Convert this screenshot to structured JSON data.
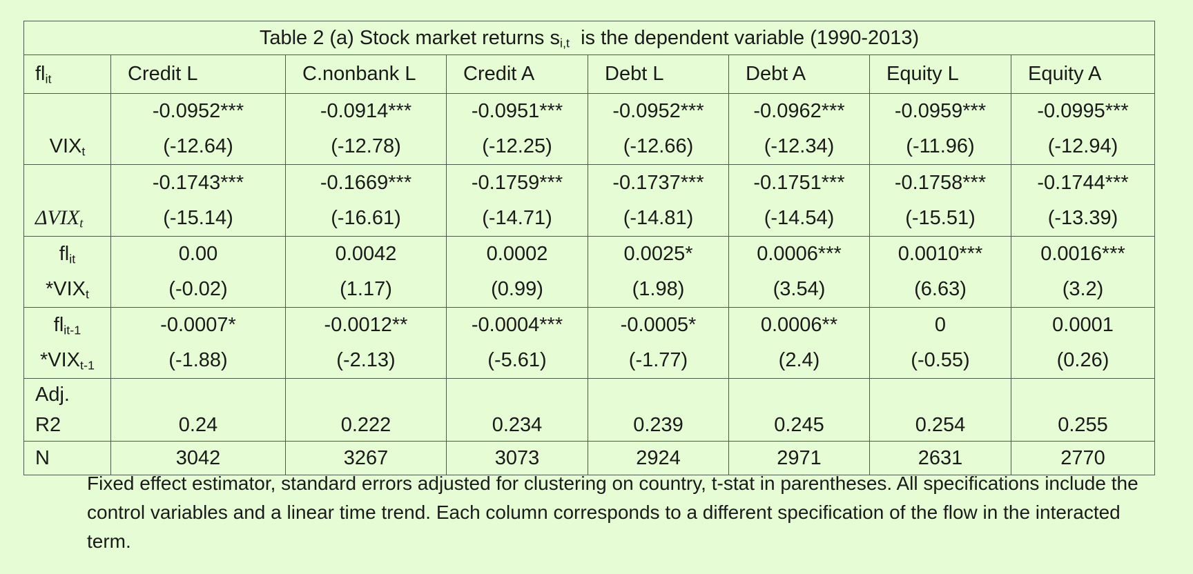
{
  "table": {
    "title": {
      "prefix": "Table 2 (a) Stock market returns s",
      "sub": "i,t",
      "suffix": "  is the dependent variable (1990-2013)"
    },
    "header": {
      "label_main": "fl",
      "label_sub": "it",
      "columns": [
        "Credit L",
        "C.nonbank L",
        "Credit A",
        "Debt L",
        "Debt A",
        "Equity L",
        "Equity A"
      ]
    },
    "rows": [
      {
        "label": {
          "main": "VIX",
          "sub": "t"
        },
        "coef": [
          "-0.0952***",
          "-0.0914***",
          "-0.0951***",
          "-0.0952***",
          "-0.0962***",
          "-0.0959***",
          "-0.0995***"
        ],
        "tstat": [
          "(-12.64)",
          "(-12.78)",
          "(-12.25)",
          "(-12.66)",
          "(-12.34)",
          "(-11.96)",
          "(-12.94)"
        ]
      },
      {
        "label": {
          "main": "ΔVIX",
          "sub": "t"
        },
        "coef": [
          "-0.1743***",
          "-0.1669***",
          "-0.1759***",
          "-0.1737***",
          "-0.1751***",
          "-0.1758***",
          "-0.1744***"
        ],
        "tstat": [
          "(-15.14)",
          "(-16.61)",
          "(-14.71)",
          "(-14.81)",
          "(-14.54)",
          "(-15.51)",
          "(-13.39)"
        ]
      },
      {
        "label": {
          "line1_main": "fl",
          "line1_sub": "it",
          "line2_main": "*VIX",
          "line2_sub": "t"
        },
        "coef": [
          "0.00",
          "0.0042",
          "0.0002",
          "0.0025*",
          "0.0006***",
          "0.0010***",
          "0.0016***"
        ],
        "tstat": [
          "(-0.02)",
          "(1.17)",
          "(0.99)",
          "(1.98)",
          "(3.54)",
          "(6.63)",
          "(3.2)"
        ]
      },
      {
        "label": {
          "line1_main": "fl",
          "line1_sub": "it-1",
          "line2_main": "*VIX",
          "line2_sub": "t-1"
        },
        "coef": [
          "-0.0007*",
          "-0.0012**",
          "-0.0004***",
          "-0.0005*",
          "0.0006**",
          "0",
          "0.0001"
        ],
        "tstat": [
          "(-1.88)",
          "(-2.13)",
          "(-5.61)",
          "(-1.77)",
          "(2.4)",
          "(-0.55)",
          "(0.26)"
        ]
      }
    ],
    "adj_r2": {
      "label_line1": "Adj.",
      "label_line2": "R2",
      "values": [
        "0.24",
        "0.222",
        "0.234",
        "0.239",
        "0.245",
        "0.254",
        "0.255"
      ]
    },
    "n": {
      "label": "N",
      "values": [
        "3042",
        "3267",
        "3073",
        "2924",
        "2971",
        "2631",
        "2770"
      ]
    }
  },
  "notes": "Fixed effect estimator, standard errors adjusted for clustering on country, t-stat in parentheses. All specifications include the control variables and a linear time trend. Each column corresponds to a different specification of the flow in the interacted term."
}
